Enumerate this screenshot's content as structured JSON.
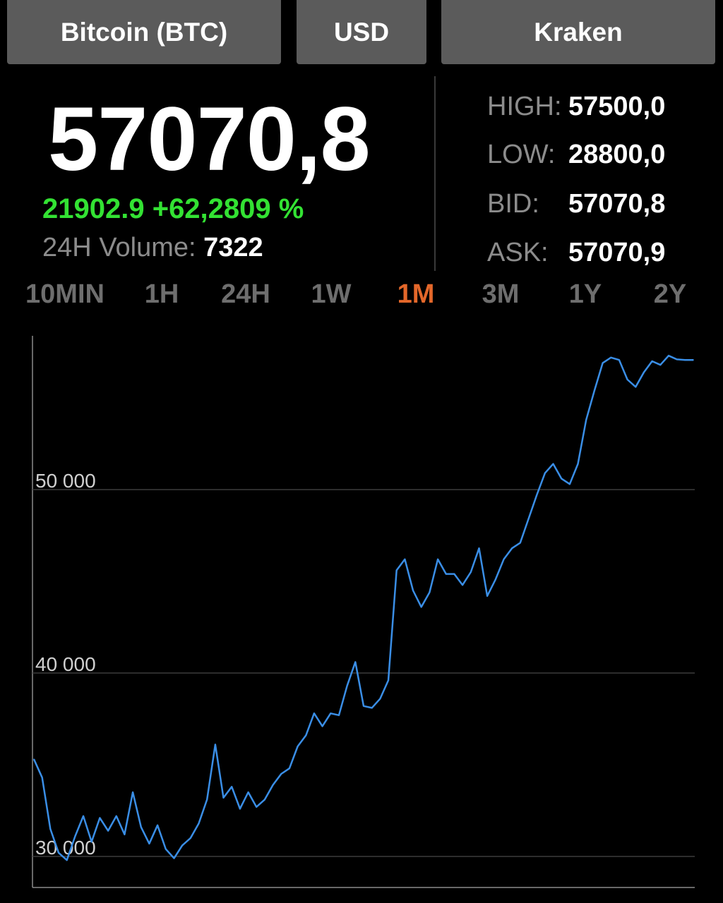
{
  "selectors": {
    "coin": "Bitcoin (BTC)",
    "currency": "USD",
    "exchange": "Kraken"
  },
  "ticker": {
    "price": "57070,8",
    "change": "21902.9 +62,2809 %",
    "volume_label": "24H Volume:",
    "volume_value": "7322"
  },
  "stats": {
    "high_label": "HIGH:",
    "high": "57500,0",
    "low_label": "LOW:",
    "low": "28800,0",
    "bid_label": "BID:",
    "bid": "57070,8",
    "ask_label": "ASK:",
    "ask": "57070,9"
  },
  "periods": [
    "10MIN",
    "1H",
    "24H",
    "1W",
    "1M",
    "3M",
    "1Y",
    "2Y"
  ],
  "active_period": "1M",
  "colors": {
    "background": "#000000",
    "button": "#5b5b5b",
    "change_positive": "#33e233",
    "active_period": "#e3672a",
    "inactive_period": "#6e6e6e",
    "line": "#3a8ee6",
    "grid": "#3c3c3c"
  },
  "chart_data": {
    "type": "line",
    "title": "",
    "xlabel": "",
    "ylabel": "",
    "ylim": [
      29500,
      58000
    ],
    "yticks": [
      30000,
      40000,
      50000
    ],
    "ytick_labels": [
      "30 000",
      "40 000",
      "50 000"
    ],
    "grid": true,
    "x": [
      0,
      1,
      2,
      3,
      4,
      5,
      6,
      7,
      8,
      9,
      10,
      11,
      12,
      13,
      14,
      15,
      16,
      17,
      18,
      19,
      20,
      21,
      22,
      23,
      24,
      25,
      26,
      27,
      28,
      29,
      30,
      31,
      32,
      33,
      34,
      35,
      36,
      37,
      38,
      39,
      40,
      41,
      42,
      43,
      44,
      45,
      46,
      47,
      48,
      49,
      50,
      51,
      52,
      53,
      54,
      55,
      56,
      57,
      58,
      59,
      60,
      61,
      62,
      63,
      64,
      65,
      66,
      67,
      68,
      69,
      70,
      71,
      72,
      73,
      74,
      75,
      76,
      77,
      78,
      79,
      80
    ],
    "series": [
      {
        "values": [
          35300,
          34300,
          31500,
          30200,
          29800,
          31100,
          32200,
          30800,
          32100,
          31400,
          32200,
          31200,
          33500,
          31600,
          30700,
          31700,
          30400,
          29900,
          30600,
          31000,
          31800,
          33100,
          36100,
          33200,
          33800,
          32600,
          33500,
          32700,
          33100,
          33900,
          34500,
          34800,
          36000,
          36600,
          37800,
          37100,
          37800,
          37700,
          39300,
          40600,
          38200,
          38100,
          38600,
          39600,
          45600,
          46200,
          44500,
          43600,
          44400,
          46200,
          45400,
          45400,
          44800,
          45500,
          46800,
          44200,
          45100,
          46200,
          46800,
          47100,
          48400,
          49700,
          50900,
          51400,
          50600,
          50300,
          51400,
          53800,
          55400,
          56900,
          57200,
          57070.8,
          56000,
          55600,
          56400,
          57000,
          56800,
          57300,
          57100,
          57070.8,
          57070.8
        ]
      }
    ]
  }
}
